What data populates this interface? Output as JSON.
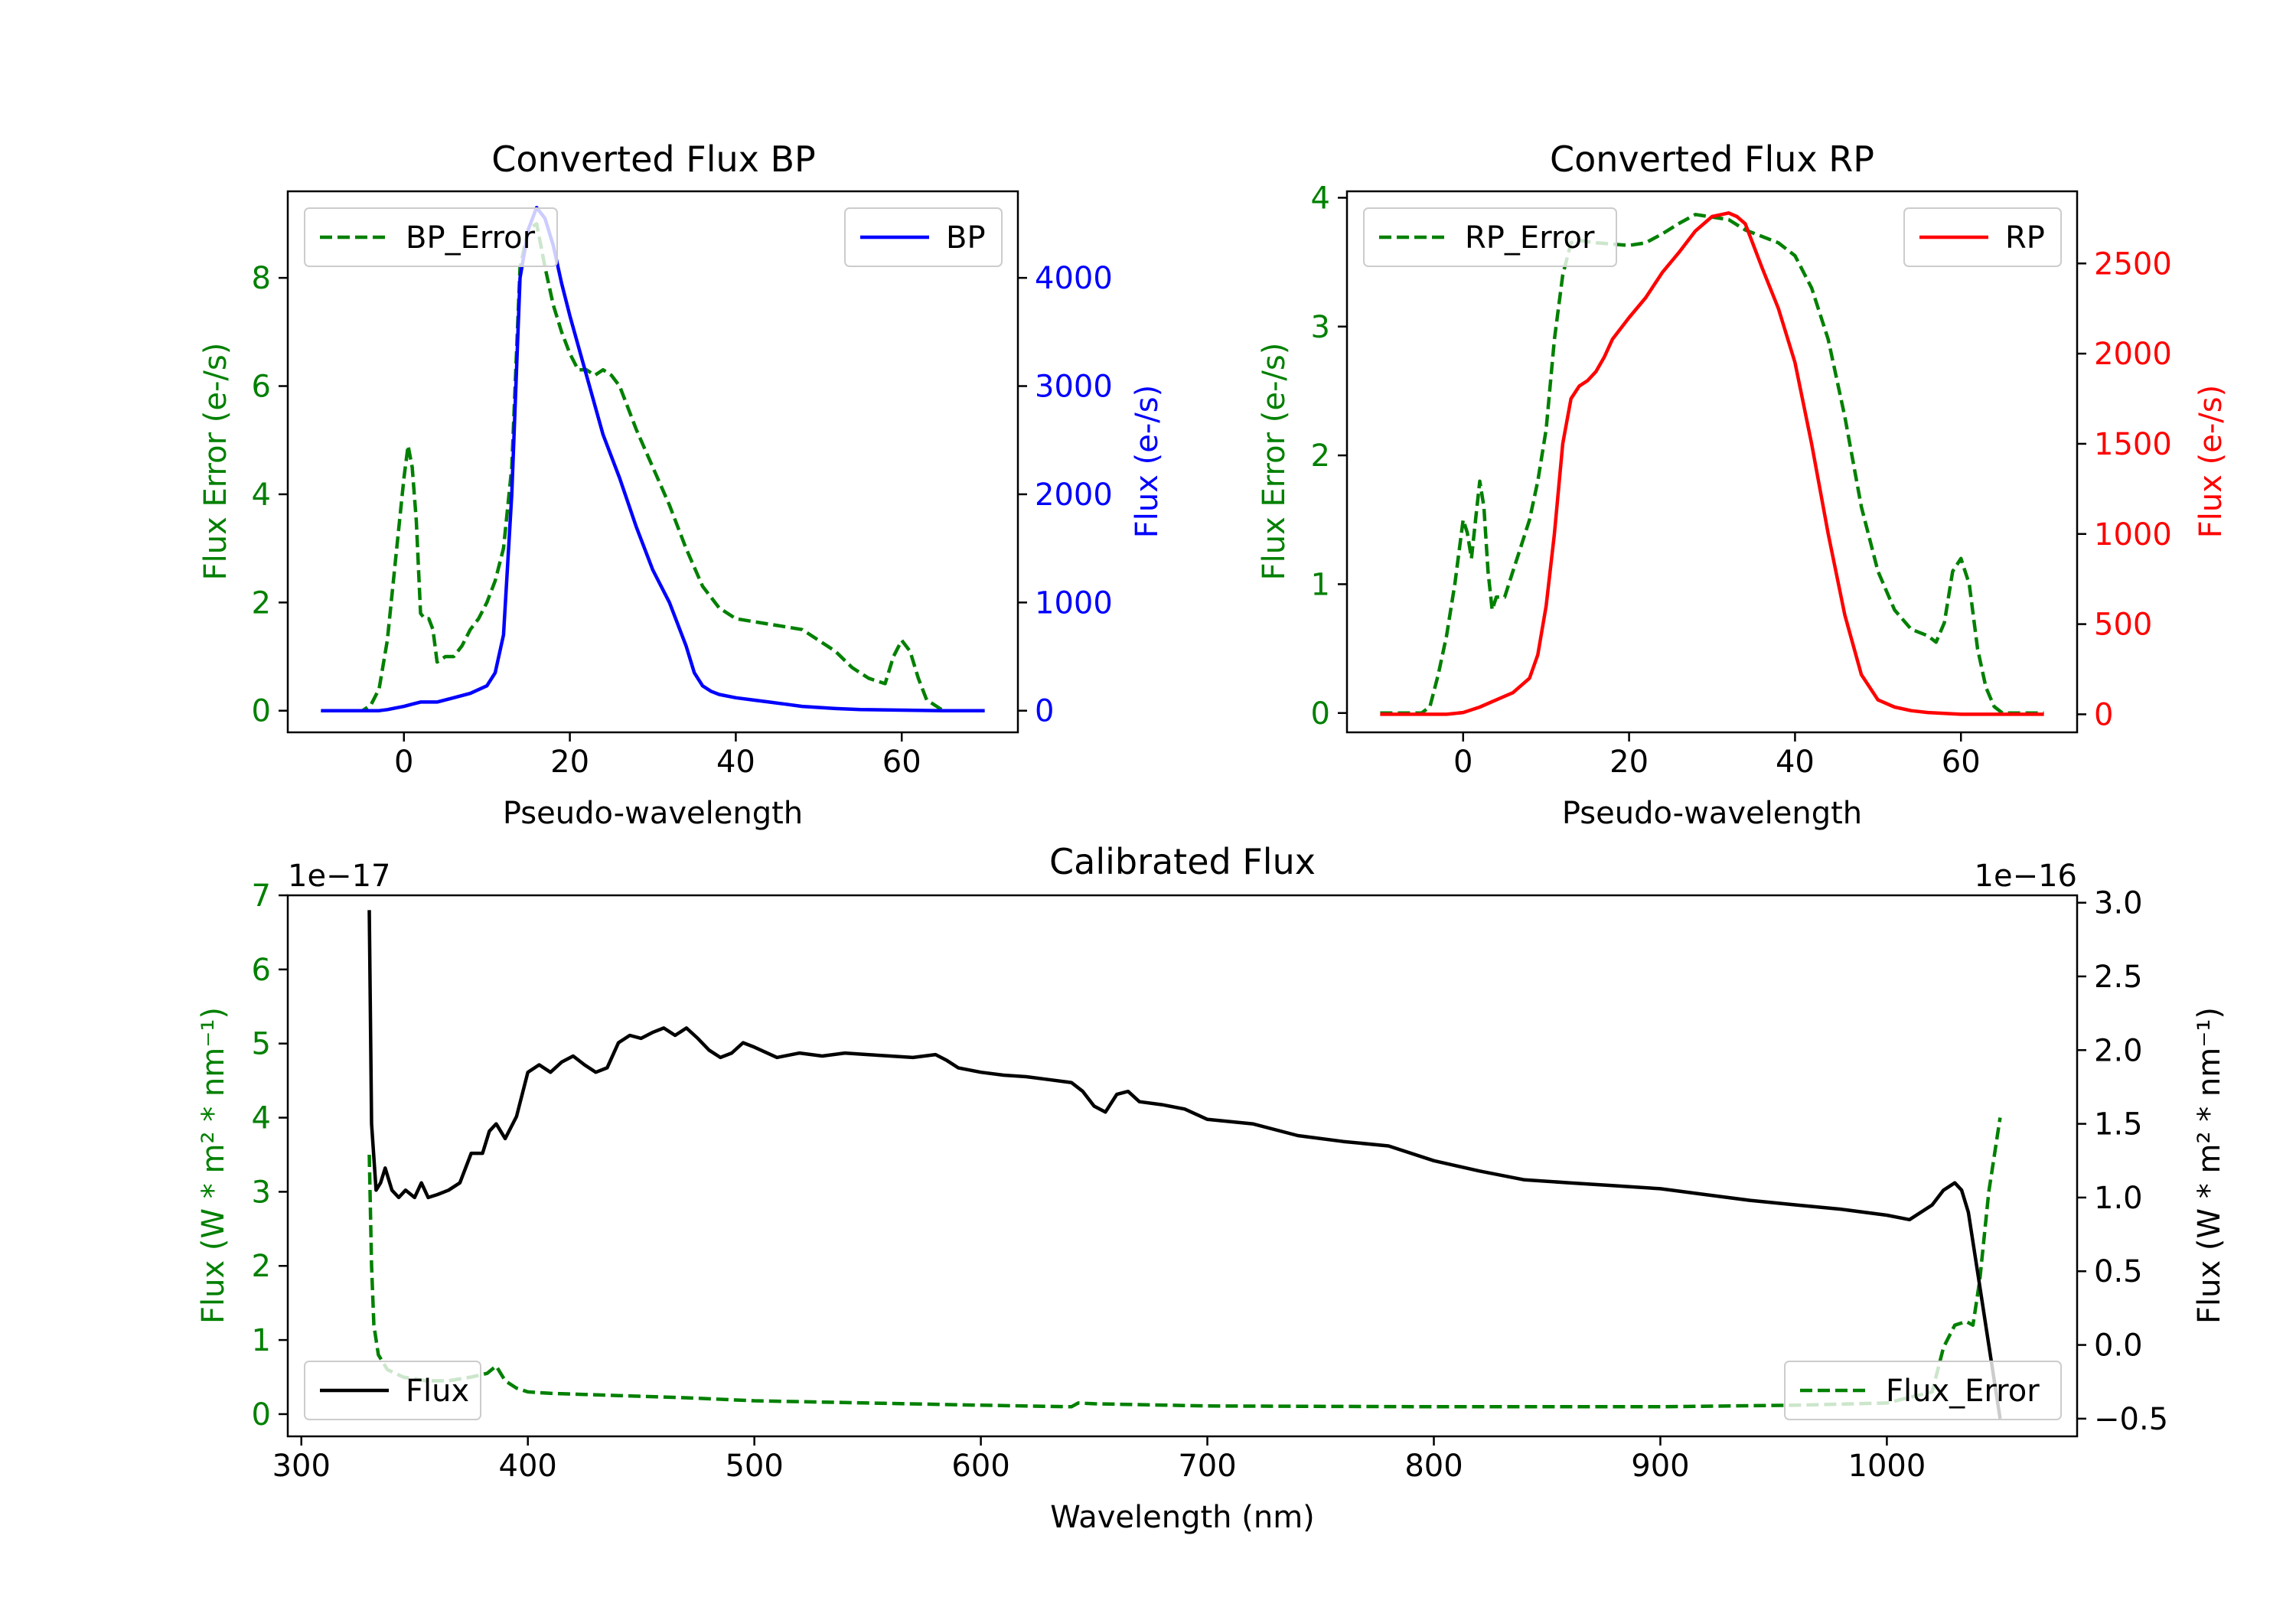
{
  "colors": {
    "error": "#008000",
    "bp": "#0000ff",
    "rp": "#ff0000",
    "flux": "#000000",
    "axis": "#000000"
  },
  "chart_data": [
    {
      "id": "bp",
      "type": "line",
      "title": "Converted Flux BP",
      "xlabel": "Pseudo-wavelength",
      "xlim": [
        -14,
        74
      ],
      "x_ticks": [
        0,
        20,
        40,
        60
      ],
      "left_axis": {
        "label": "Flux Error (e-/s)",
        "ylim": [
          -0.4,
          9.6
        ],
        "ticks": [
          0,
          2,
          4,
          6,
          8
        ],
        "tick_labels": [
          "0",
          "2",
          "4",
          "6",
          "8"
        ]
      },
      "right_axis": {
        "label": "Flux (e-/s)",
        "ylim": [
          -200,
          4800
        ],
        "ticks": [
          0,
          1000,
          2000,
          3000,
          4000
        ],
        "tick_labels": [
          "0",
          "1000",
          "2000",
          "3000",
          "4000"
        ]
      },
      "series": [
        {
          "name": "BP_Error",
          "axis": "left",
          "style": "dashed",
          "color": "error",
          "x": [
            -10,
            -5,
            -4,
            -3,
            -2,
            -1,
            0,
            0.5,
            1,
            1.5,
            2,
            2.5,
            3,
            3.5,
            4,
            5,
            6,
            7,
            8,
            9,
            10,
            11,
            12,
            13,
            14,
            15,
            16,
            17,
            18,
            19,
            20,
            21,
            22,
            23,
            24,
            25,
            26,
            27,
            28,
            30,
            32,
            34,
            36,
            38,
            40,
            42,
            44,
            46,
            48,
            50,
            52,
            54,
            56,
            58,
            59,
            60,
            61,
            62,
            63,
            65,
            70
          ],
          "values": [
            0,
            0,
            0.1,
            0.4,
            1.3,
            2.8,
            4.3,
            4.9,
            4.5,
            3.5,
            1.8,
            1.7,
            1.7,
            1.5,
            0.9,
            1.0,
            1.0,
            1.2,
            1.5,
            1.7,
            2.0,
            2.4,
            3.0,
            4.5,
            8.2,
            8.9,
            9.0,
            8.2,
            7.5,
            7.0,
            6.6,
            6.3,
            6.3,
            6.2,
            6.3,
            6.2,
            6.0,
            5.6,
            5.2,
            4.5,
            3.8,
            3.0,
            2.3,
            1.9,
            1.7,
            1.65,
            1.6,
            1.55,
            1.5,
            1.3,
            1.1,
            0.8,
            0.6,
            0.5,
            1.0,
            1.3,
            1.1,
            0.6,
            0.2,
            0,
            0
          ]
        },
        {
          "name": "BP",
          "axis": "right",
          "style": "solid",
          "color": "bp",
          "x": [
            -10,
            -5,
            -3,
            -2,
            -1,
            0,
            1,
            2,
            4,
            6,
            8,
            10,
            11,
            12,
            13,
            14,
            15,
            16,
            17,
            18,
            19,
            20,
            22,
            24,
            26,
            28,
            30,
            32,
            34,
            35,
            36,
            37,
            38,
            40,
            42,
            44,
            46,
            48,
            50,
            52,
            55,
            60,
            65,
            70
          ],
          "values": [
            0,
            0,
            0,
            10,
            25,
            40,
            60,
            80,
            80,
            120,
            160,
            230,
            350,
            700,
            2000,
            4000,
            4450,
            4650,
            4550,
            4300,
            3950,
            3650,
            3100,
            2550,
            2150,
            1700,
            1300,
            1000,
            600,
            350,
            230,
            180,
            150,
            120,
            100,
            80,
            60,
            40,
            30,
            20,
            10,
            5,
            0,
            0
          ]
        }
      ],
      "legends": [
        {
          "position": "upper left",
          "entries": [
            "BP_Error"
          ]
        },
        {
          "position": "upper right",
          "entries": [
            "BP"
          ]
        }
      ]
    },
    {
      "id": "rp",
      "type": "line",
      "title": "Converted Flux RP",
      "xlabel": "Pseudo-wavelength",
      "xlim": [
        -14,
        74
      ],
      "x_ticks": [
        0,
        20,
        40,
        60
      ],
      "left_axis": {
        "label": "Flux Error (e-/s)",
        "ylim": [
          -0.15,
          4.05
        ],
        "ticks": [
          0,
          1,
          2,
          3,
          4
        ],
        "tick_labels": [
          "0",
          "1",
          "2",
          "3",
          "4"
        ]
      },
      "right_axis": {
        "label": "Flux (e-/s)",
        "ylim": [
          -100,
          2900
        ],
        "ticks": [
          0,
          500,
          1000,
          1500,
          2000,
          2500
        ],
        "tick_labels": [
          "0",
          "500",
          "1000",
          "1500",
          "2000",
          "2500"
        ]
      },
      "series": [
        {
          "name": "RP_Error",
          "axis": "left",
          "style": "dashed",
          "color": "error",
          "x": [
            -10,
            -5,
            -4,
            -3,
            -2,
            -1,
            0,
            0.5,
            1,
            1.5,
            2,
            2.5,
            3,
            3.5,
            4,
            5,
            6,
            7,
            8,
            9,
            10,
            11,
            12,
            13,
            14,
            16,
            18,
            20,
            22,
            24,
            26,
            28,
            30,
            32,
            34,
            36,
            38,
            40,
            42,
            44,
            46,
            48,
            50,
            52,
            54,
            56,
            57,
            58,
            59,
            60,
            61,
            62,
            63,
            64,
            65,
            70
          ],
          "values": [
            0,
            0,
            0.05,
            0.3,
            0.6,
            1.0,
            1.5,
            1.4,
            1.2,
            1.5,
            1.8,
            1.6,
            1.1,
            0.8,
            0.9,
            0.9,
            1.1,
            1.3,
            1.5,
            1.8,
            2.2,
            2.9,
            3.4,
            3.65,
            3.67,
            3.65,
            3.64,
            3.63,
            3.65,
            3.72,
            3.8,
            3.87,
            3.85,
            3.83,
            3.75,
            3.7,
            3.65,
            3.55,
            3.3,
            2.9,
            2.3,
            1.6,
            1.1,
            0.8,
            0.65,
            0.6,
            0.55,
            0.7,
            1.1,
            1.2,
            1.0,
            0.5,
            0.2,
            0.05,
            0,
            0
          ]
        },
        {
          "name": "RP",
          "axis": "right",
          "style": "solid",
          "color": "rp",
          "x": [
            -10,
            -5,
            -2,
            0,
            2,
            4,
            6,
            8,
            9,
            10,
            11,
            12,
            13,
            14,
            15,
            16,
            17,
            18,
            20,
            22,
            24,
            26,
            28,
            30,
            32,
            33,
            34,
            35,
            36,
            38,
            40,
            42,
            44,
            46,
            48,
            50,
            52,
            54,
            56,
            58,
            60,
            62,
            65,
            70
          ],
          "values": [
            0,
            0,
            0,
            10,
            40,
            80,
            120,
            200,
            330,
            600,
            1000,
            1500,
            1750,
            1820,
            1850,
            1900,
            1980,
            2080,
            2200,
            2310,
            2450,
            2560,
            2680,
            2760,
            2780,
            2760,
            2720,
            2600,
            2480,
            2250,
            1950,
            1500,
            1000,
            550,
            220,
            80,
            40,
            20,
            10,
            5,
            0,
            0,
            0,
            0
          ]
        }
      ],
      "legends": [
        {
          "position": "upper left",
          "entries": [
            "RP_Error"
          ]
        },
        {
          "position": "upper right",
          "entries": [
            "RP"
          ]
        }
      ]
    },
    {
      "id": "cal",
      "type": "line",
      "title": "Calibrated Flux",
      "xlabel": "Wavelength (nm)",
      "xlim": [
        294,
        1084
      ],
      "x_ticks": [
        300,
        400,
        500,
        600,
        700,
        800,
        900,
        1000
      ],
      "left_axis": {
        "label": "Flux (W * m² * nm⁻¹)",
        "multiplier": "1e−17",
        "ylim": [
          -0.3,
          7.0
        ],
        "ticks": [
          0,
          1,
          2,
          3,
          4,
          5,
          6,
          7
        ],
        "tick_labels": [
          "0",
          "1",
          "2",
          "3",
          "4",
          "5",
          "6",
          "7"
        ]
      },
      "right_axis": {
        "label": "Flux (W * m² * nm⁻¹)",
        "multiplier": "1e−16",
        "ylim": [
          -0.62,
          3.05
        ],
        "ticks": [
          -0.5,
          0,
          0.5,
          1,
          1.5,
          2,
          2.5,
          3
        ],
        "tick_labels": [
          "−0.5",
          "0.0",
          "0.5",
          "1.0",
          "1.5",
          "2.0",
          "2.5",
          "3.0"
        ]
      },
      "series": [
        {
          "name": "Flux_Error",
          "axis": "left",
          "style": "dashed",
          "color": "error",
          "x": [
            330,
            331,
            332,
            334,
            338,
            345,
            355,
            365,
            375,
            382,
            386,
            390,
            395,
            400,
            410,
            420,
            440,
            470,
            500,
            550,
            600,
            640,
            643,
            650,
            700,
            800,
            900,
            960,
            1000,
            1020,
            1025,
            1030,
            1035,
            1038,
            1041,
            1045,
            1050
          ],
          "values": [
            3.5,
            2.0,
            1.2,
            0.8,
            0.6,
            0.5,
            0.45,
            0.45,
            0.5,
            0.55,
            0.65,
            0.45,
            0.35,
            0.3,
            0.28,
            0.27,
            0.25,
            0.22,
            0.18,
            0.15,
            0.12,
            0.1,
            0.15,
            0.14,
            0.11,
            0.1,
            0.1,
            0.12,
            0.15,
            0.3,
            0.9,
            1.2,
            1.25,
            1.2,
            1.8,
            3.0,
            4.0
          ]
        },
        {
          "name": "Flux",
          "axis": "right",
          "style": "solid",
          "color": "flux",
          "x": [
            330,
            331,
            333,
            335,
            337,
            340,
            343,
            346,
            350,
            353,
            356,
            360,
            365,
            370,
            375,
            380,
            383,
            386,
            390,
            395,
            400,
            405,
            410,
            415,
            420,
            425,
            430,
            435,
            440,
            445,
            450,
            455,
            460,
            465,
            470,
            475,
            480,
            485,
            490,
            495,
            500,
            510,
            520,
            530,
            540,
            550,
            560,
            570,
            575,
            580,
            585,
            590,
            600,
            610,
            620,
            630,
            640,
            645,
            650,
            655,
            660,
            665,
            670,
            680,
            690,
            700,
            720,
            740,
            760,
            780,
            800,
            820,
            840,
            860,
            880,
            900,
            920,
            940,
            960,
            980,
            1000,
            1010,
            1020,
            1025,
            1030,
            1033,
            1036,
            1040,
            1045,
            1050
          ],
          "values": [
            2.95,
            1.5,
            1.05,
            1.1,
            1.2,
            1.05,
            1.0,
            1.05,
            1.0,
            1.1,
            1.0,
            1.02,
            1.05,
            1.1,
            1.3,
            1.3,
            1.45,
            1.5,
            1.4,
            1.55,
            1.85,
            1.9,
            1.85,
            1.92,
            1.96,
            1.9,
            1.85,
            1.88,
            2.05,
            2.1,
            2.08,
            2.12,
            2.15,
            2.1,
            2.15,
            2.08,
            2.0,
            1.95,
            1.98,
            2.05,
            2.02,
            1.95,
            1.98,
            1.96,
            1.98,
            1.97,
            1.96,
            1.95,
            1.96,
            1.97,
            1.93,
            1.88,
            1.85,
            1.83,
            1.82,
            1.8,
            1.78,
            1.72,
            1.62,
            1.58,
            1.7,
            1.72,
            1.65,
            1.63,
            1.6,
            1.53,
            1.5,
            1.42,
            1.38,
            1.35,
            1.25,
            1.18,
            1.12,
            1.1,
            1.08,
            1.06,
            1.02,
            0.98,
            0.95,
            0.92,
            0.88,
            0.85,
            0.95,
            1.05,
            1.1,
            1.05,
            0.9,
            0.5,
            0.0,
            -0.5
          ]
        }
      ],
      "legends": [
        {
          "position": "lower left",
          "entries": [
            "Flux"
          ]
        },
        {
          "position": "lower right",
          "entries": [
            "Flux_Error"
          ]
        }
      ]
    }
  ]
}
